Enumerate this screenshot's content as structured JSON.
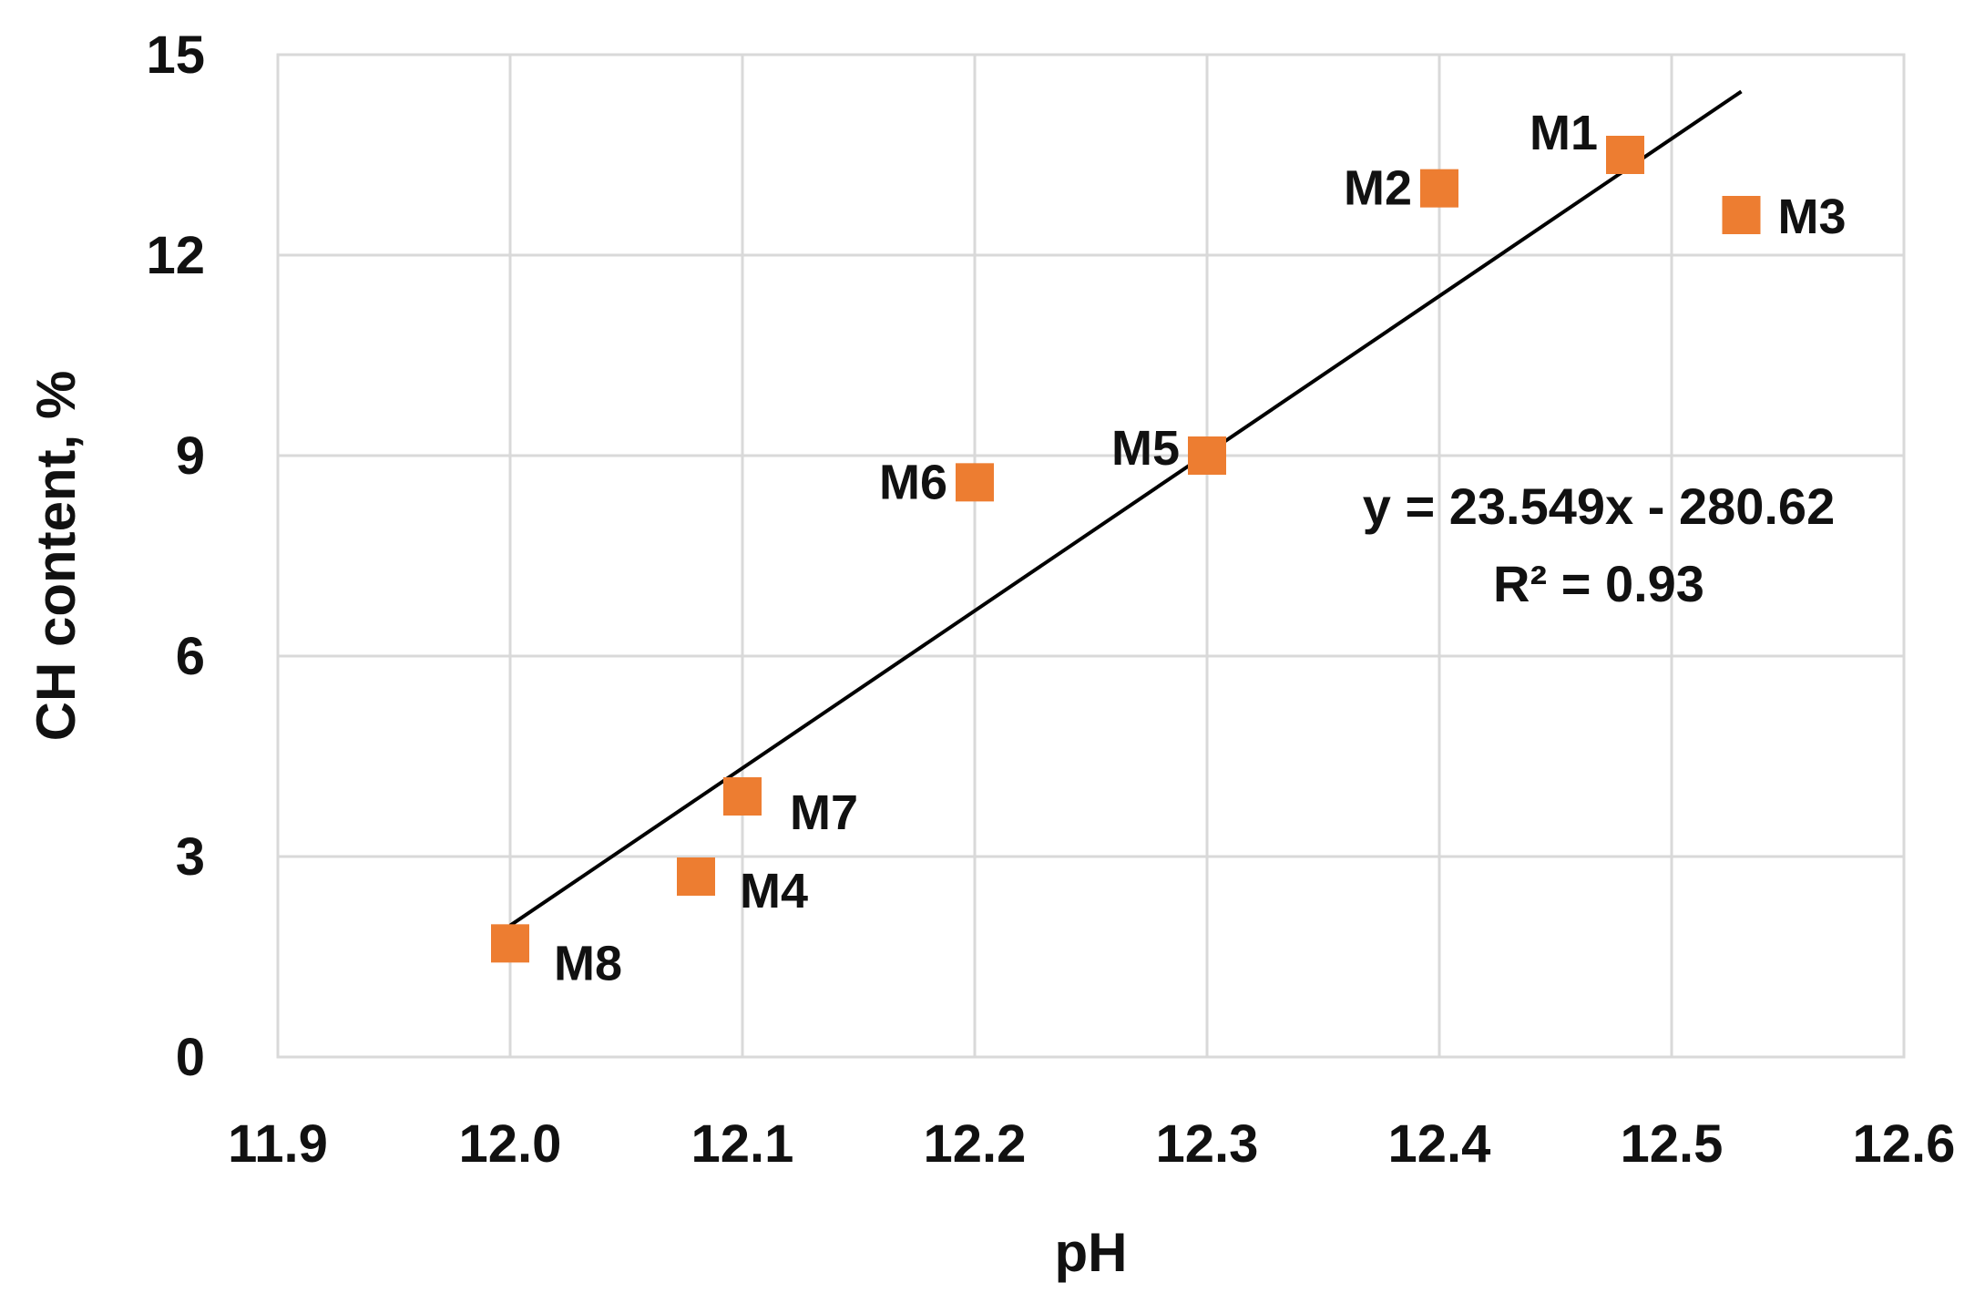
{
  "chart_data": {
    "type": "scatter",
    "xlabel": "pH",
    "ylabel": "CH content, %",
    "xlim": [
      11.9,
      12.6
    ],
    "ylim": [
      0,
      15
    ],
    "xticks": [
      11.9,
      12.0,
      12.1,
      12.2,
      12.3,
      12.4,
      12.5,
      12.6
    ],
    "xtick_labels": [
      "11.9",
      "12.0",
      "12.1",
      "12.2",
      "12.3",
      "12.4",
      "12.5",
      "12.6"
    ],
    "yticks": [
      0,
      3,
      6,
      9,
      12,
      15
    ],
    "ytick_labels": [
      "0",
      "3",
      "6",
      "9",
      "12",
      "15"
    ],
    "grid": true,
    "marker_color": "#ed7d31",
    "line_color": "#000000",
    "points": [
      {
        "label": "M1",
        "x": 12.48,
        "y": 13.5
      },
      {
        "label": "M2",
        "x": 12.4,
        "y": 13.0
      },
      {
        "label": "M3",
        "x": 12.53,
        "y": 12.6
      },
      {
        "label": "M4",
        "x": 12.08,
        "y": 2.7
      },
      {
        "label": "M5",
        "x": 12.3,
        "y": 9.0
      },
      {
        "label": "M6",
        "x": 12.2,
        "y": 8.6
      },
      {
        "label": "M7",
        "x": 12.1,
        "y": 3.9
      },
      {
        "label": "M8",
        "x": 12.0,
        "y": 1.7
      }
    ],
    "trendline": {
      "slope": 23.549,
      "intercept": -280.62,
      "x_range": [
        12.0,
        12.53
      ]
    },
    "annotations": {
      "equation": "y = 23.549x - 280.62",
      "r_squared": "R² = 0.93"
    }
  }
}
